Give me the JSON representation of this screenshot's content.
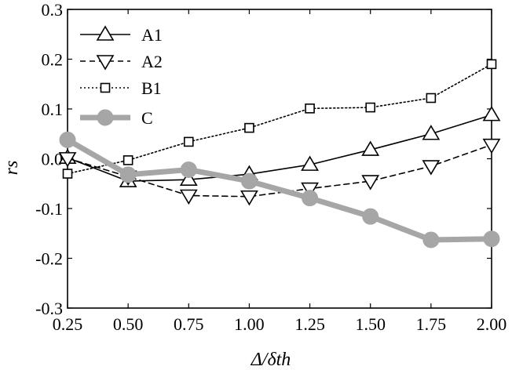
{
  "chart_data": {
    "type": "line",
    "x": [
      0.25,
      0.5,
      0.75,
      1.0,
      1.25,
      1.5,
      1.75,
      2.0
    ],
    "x_tick_labels": [
      "0.25",
      "0.50",
      "0.75",
      "1.00",
      "1.25",
      "1.50",
      "1.75",
      "2.00"
    ],
    "y_tick_labels": [
      "0.3",
      "0.2",
      "0.1",
      "0.0",
      "-0.1",
      "-0.2",
      "-0.3"
    ],
    "y_ticks": [
      0.3,
      0.2,
      0.1,
      0.0,
      -0.1,
      -0.2,
      -0.3
    ],
    "xlim": [
      0.25,
      2.0
    ],
    "ylim": [
      -0.3,
      0.3
    ],
    "xlabel": "Δ/δth",
    "ylabel": "rs",
    "grid": false,
    "legend_position": "top-left",
    "series": [
      {
        "name": "A1",
        "marker": "triangle-up",
        "line_style": "solid",
        "color": "#000000",
        "values": [
          0.002,
          -0.045,
          -0.042,
          -0.031,
          -0.012,
          0.018,
          0.05,
          0.088
        ]
      },
      {
        "name": "A2",
        "marker": "triangle-down",
        "line_style": "dashed",
        "color": "#000000",
        "values": [
          0.001,
          -0.036,
          -0.074,
          -0.076,
          -0.06,
          -0.045,
          -0.015,
          0.028
        ]
      },
      {
        "name": "B1",
        "marker": "square",
        "line_style": "dotted",
        "color": "#000000",
        "values": [
          -0.03,
          -0.003,
          0.034,
          0.062,
          0.101,
          0.103,
          0.122,
          0.19
        ]
      },
      {
        "name": "C",
        "marker": "circle",
        "line_style": "solid-thick",
        "color": "#a6a6a6",
        "values": [
          0.038,
          -0.032,
          -0.022,
          -0.045,
          -0.079,
          -0.116,
          -0.163,
          -0.161
        ]
      }
    ]
  }
}
